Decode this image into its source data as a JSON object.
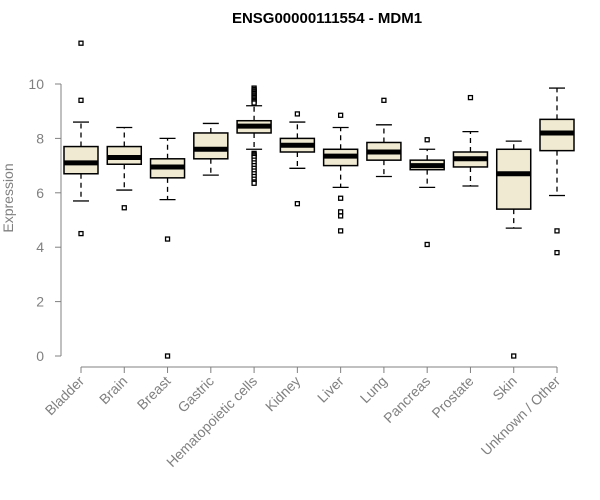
{
  "chart_data": {
    "type": "boxplot",
    "title": "ENSG00000111554 - MDM1",
    "xlabel": "",
    "ylabel": "Expression",
    "ylim": [
      0,
      10.5
    ],
    "yticks": [
      0,
      2,
      4,
      6,
      8,
      10
    ],
    "grid": false,
    "colors": {
      "box_fill": "#f0ead2",
      "stroke": "#000000",
      "axis": "#808080"
    },
    "categories": [
      "Bladder",
      "Brain",
      "Breast",
      "Gastric",
      "Hematopoietic cells",
      "Kidney",
      "Liver",
      "Lung",
      "Pancreas",
      "Prostate",
      "Skin",
      "Unknown / Other"
    ],
    "boxes": [
      {
        "category": "Bladder",
        "whisker_low": 5.7,
        "q1": 6.7,
        "median": 7.1,
        "q3": 7.7,
        "whisker_high": 8.6,
        "outliers": [
          11.5,
          9.4,
          4.5
        ]
      },
      {
        "category": "Brain",
        "whisker_low": 6.1,
        "q1": 7.05,
        "median": 7.3,
        "q3": 7.7,
        "whisker_high": 8.4,
        "outliers": [
          5.45
        ]
      },
      {
        "category": "Breast",
        "whisker_low": 5.75,
        "q1": 6.55,
        "median": 6.95,
        "q3": 7.25,
        "whisker_high": 8.0,
        "outliers": [
          4.3,
          0.0
        ]
      },
      {
        "category": "Gastric",
        "whisker_low": 6.65,
        "q1": 7.25,
        "median": 7.6,
        "q3": 8.2,
        "whisker_high": 8.55,
        "outliers": []
      },
      {
        "category": "Hematopoietic cells",
        "whisker_low": 7.6,
        "q1": 8.2,
        "median": 8.45,
        "q3": 8.65,
        "whisker_high": 9.2,
        "outliers": [
          9.85,
          9.8,
          9.75,
          9.7,
          9.65,
          9.6,
          9.55,
          9.5,
          9.45,
          9.4,
          9.35,
          9.3,
          7.45,
          7.4,
          7.35,
          7.3,
          7.2,
          7.1,
          7.0,
          6.9,
          6.8,
          6.7,
          6.6,
          6.5,
          6.4,
          6.35
        ]
      },
      {
        "category": "Kidney",
        "whisker_low": 6.9,
        "q1": 7.5,
        "median": 7.75,
        "q3": 8.0,
        "whisker_high": 8.6,
        "outliers": [
          8.9,
          5.6
        ]
      },
      {
        "category": "Liver",
        "whisker_low": 6.2,
        "q1": 7.0,
        "median": 7.35,
        "q3": 7.6,
        "whisker_high": 8.4,
        "outliers": [
          8.85,
          5.8,
          5.3,
          5.15,
          4.6
        ]
      },
      {
        "category": "Lung",
        "whisker_low": 6.6,
        "q1": 7.2,
        "median": 7.5,
        "q3": 7.85,
        "whisker_high": 8.5,
        "outliers": [
          9.4
        ]
      },
      {
        "category": "Pancreas",
        "whisker_low": 6.2,
        "q1": 6.85,
        "median": 7.0,
        "q3": 7.2,
        "whisker_high": 7.6,
        "outliers": [
          7.95,
          4.1
        ]
      },
      {
        "category": "Prostate",
        "whisker_low": 6.25,
        "q1": 6.95,
        "median": 7.25,
        "q3": 7.5,
        "whisker_high": 8.25,
        "outliers": [
          9.5
        ]
      },
      {
        "category": "Skin",
        "whisker_low": 4.7,
        "q1": 5.4,
        "median": 6.7,
        "q3": 7.6,
        "whisker_high": 7.9,
        "outliers": [
          0.0
        ]
      },
      {
        "category": "Unknown / Other",
        "whisker_low": 5.9,
        "q1": 7.55,
        "median": 8.2,
        "q3": 8.7,
        "whisker_high": 9.85,
        "outliers": [
          4.6,
          3.8
        ]
      }
    ]
  }
}
